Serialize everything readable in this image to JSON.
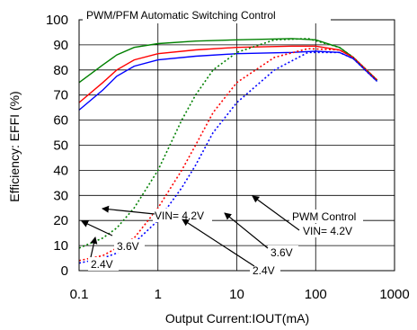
{
  "chart_data": {
    "type": "line",
    "title": "PWM/PFM Automatic Switching Control",
    "xlabel": "Output Current:IOUT(mA)",
    "ylabel": "Efficiency: EFFI (%)",
    "xscale": "log",
    "xlim": [
      0.1,
      1000
    ],
    "ylim": [
      0,
      100
    ],
    "x_ticks": [
      "0.1",
      "1",
      "10",
      "100",
      "1000"
    ],
    "y_ticks": [
      "0",
      "10",
      "20",
      "30",
      "40",
      "50",
      "60",
      "70",
      "80",
      "90",
      "100"
    ],
    "grid": true,
    "colors": {
      "vin_4_2": "#008000",
      "vin_3_6": "#ff0000",
      "vin_2_4": "#0000ff"
    },
    "series": [
      {
        "group": "pwm_pfm",
        "color": "#008000",
        "dash": "solid",
        "points": [
          [
            0.1,
            75
          ],
          [
            0.2,
            82
          ],
          [
            0.3,
            86
          ],
          [
            0.5,
            89
          ],
          [
            1,
            90.5
          ],
          [
            3,
            91.5
          ],
          [
            10,
            92
          ],
          [
            50,
            92.5
          ],
          [
            100,
            92
          ],
          [
            200,
            89
          ],
          [
            300,
            85
          ],
          [
            600,
            76
          ]
        ]
      },
      {
        "group": "pwm_pfm",
        "color": "#ff0000",
        "dash": "solid",
        "points": [
          [
            0.1,
            67
          ],
          [
            0.2,
            75
          ],
          [
            0.3,
            80
          ],
          [
            0.5,
            84
          ],
          [
            1,
            86.5
          ],
          [
            3,
            88
          ],
          [
            10,
            89
          ],
          [
            50,
            89.5
          ],
          [
            100,
            89.5
          ],
          [
            200,
            88
          ],
          [
            300,
            85
          ],
          [
            600,
            76
          ]
        ]
      },
      {
        "group": "pwm_pfm",
        "color": "#0000ff",
        "dash": "solid",
        "points": [
          [
            0.1,
            64
          ],
          [
            0.2,
            72
          ],
          [
            0.3,
            77.5
          ],
          [
            0.5,
            81.5
          ],
          [
            1,
            84
          ],
          [
            3,
            85.5
          ],
          [
            10,
            86.5
          ],
          [
            50,
            87
          ],
          [
            100,
            87.5
          ],
          [
            200,
            87
          ],
          [
            300,
            84.5
          ],
          [
            600,
            75.5
          ]
        ]
      },
      {
        "group": "pwm",
        "color": "#008000",
        "dash": "dotted",
        "points": [
          [
            0.1,
            9
          ],
          [
            0.2,
            13
          ],
          [
            0.3,
            17
          ],
          [
            0.5,
            25
          ],
          [
            1,
            40
          ],
          [
            2,
            60
          ],
          [
            3,
            70
          ],
          [
            5,
            80
          ],
          [
            10,
            87
          ],
          [
            30,
            92
          ],
          [
            80,
            92.5
          ],
          [
            200,
            89
          ],
          [
            300,
            85
          ],
          [
            600,
            76
          ]
        ]
      },
      {
        "group": "pwm",
        "color": "#ff0000",
        "dash": "dotted",
        "points": [
          [
            0.1,
            4
          ],
          [
            0.2,
            6
          ],
          [
            0.3,
            9
          ],
          [
            0.5,
            13
          ],
          [
            1,
            25
          ],
          [
            2,
            40
          ],
          [
            3,
            50
          ],
          [
            5,
            63
          ],
          [
            10,
            75
          ],
          [
            30,
            85
          ],
          [
            80,
            88.5
          ],
          [
            200,
            88
          ],
          [
            300,
            85
          ],
          [
            600,
            76
          ]
        ]
      },
      {
        "group": "pwm",
        "color": "#0000ff",
        "dash": "dotted",
        "points": [
          [
            0.1,
            3
          ],
          [
            0.2,
            5
          ],
          [
            0.3,
            7
          ],
          [
            0.5,
            11
          ],
          [
            1,
            20
          ],
          [
            2,
            33
          ],
          [
            3,
            42
          ],
          [
            5,
            55
          ],
          [
            10,
            67
          ],
          [
            30,
            80
          ],
          [
            80,
            87
          ],
          [
            200,
            87
          ],
          [
            300,
            84.5
          ],
          [
            600,
            75.5
          ]
        ]
      }
    ],
    "annotations": {
      "vin_42": "VIN= 4.2V",
      "v36": "3.6V",
      "v24": "2.4V",
      "pwm_label": "PWM Control",
      "pwm_vin_42": "VIN= 4.2V",
      "pwm_v36": "3.6V",
      "pwm_v24": "2.4V"
    }
  }
}
